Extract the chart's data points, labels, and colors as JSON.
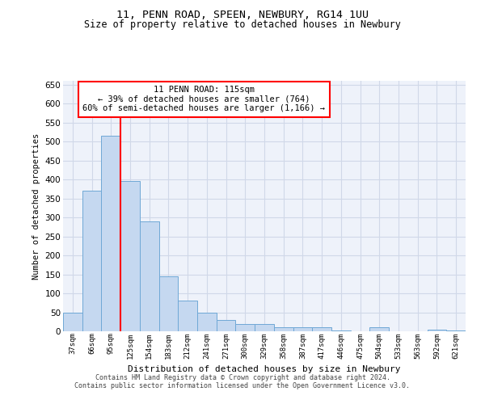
{
  "title1": "11, PENN ROAD, SPEEN, NEWBURY, RG14 1UU",
  "title2": "Size of property relative to detached houses in Newbury",
  "xlabel": "Distribution of detached houses by size in Newbury",
  "ylabel": "Number of detached properties",
  "categories": [
    "37sqm",
    "66sqm",
    "95sqm",
    "125sqm",
    "154sqm",
    "183sqm",
    "212sqm",
    "241sqm",
    "271sqm",
    "300sqm",
    "329sqm",
    "358sqm",
    "387sqm",
    "417sqm",
    "446sqm",
    "475sqm",
    "504sqm",
    "533sqm",
    "563sqm",
    "592sqm",
    "621sqm"
  ],
  "values": [
    50,
    370,
    515,
    395,
    290,
    145,
    80,
    50,
    30,
    20,
    20,
    10,
    10,
    10,
    3,
    0,
    10,
    0,
    0,
    5,
    3
  ],
  "bar_color": "#c5d8f0",
  "bar_edge_color": "#6fa8d6",
  "vline_x_index": 2.5,
  "vline_color": "red",
  "annotation_text": "11 PENN ROAD: 115sqm\n← 39% of detached houses are smaller (764)\n60% of semi-detached houses are larger (1,166) →",
  "annotation_box_color": "white",
  "annotation_box_edge": "red",
  "ylim": [
    0,
    660
  ],
  "yticks": [
    0,
    50,
    100,
    150,
    200,
    250,
    300,
    350,
    400,
    450,
    500,
    550,
    600,
    650
  ],
  "bg_color": "#eef2fa",
  "grid_color": "#d0d8e8",
  "footer1": "Contains HM Land Registry data © Crown copyright and database right 2024.",
  "footer2": "Contains public sector information licensed under the Open Government Licence v3.0."
}
